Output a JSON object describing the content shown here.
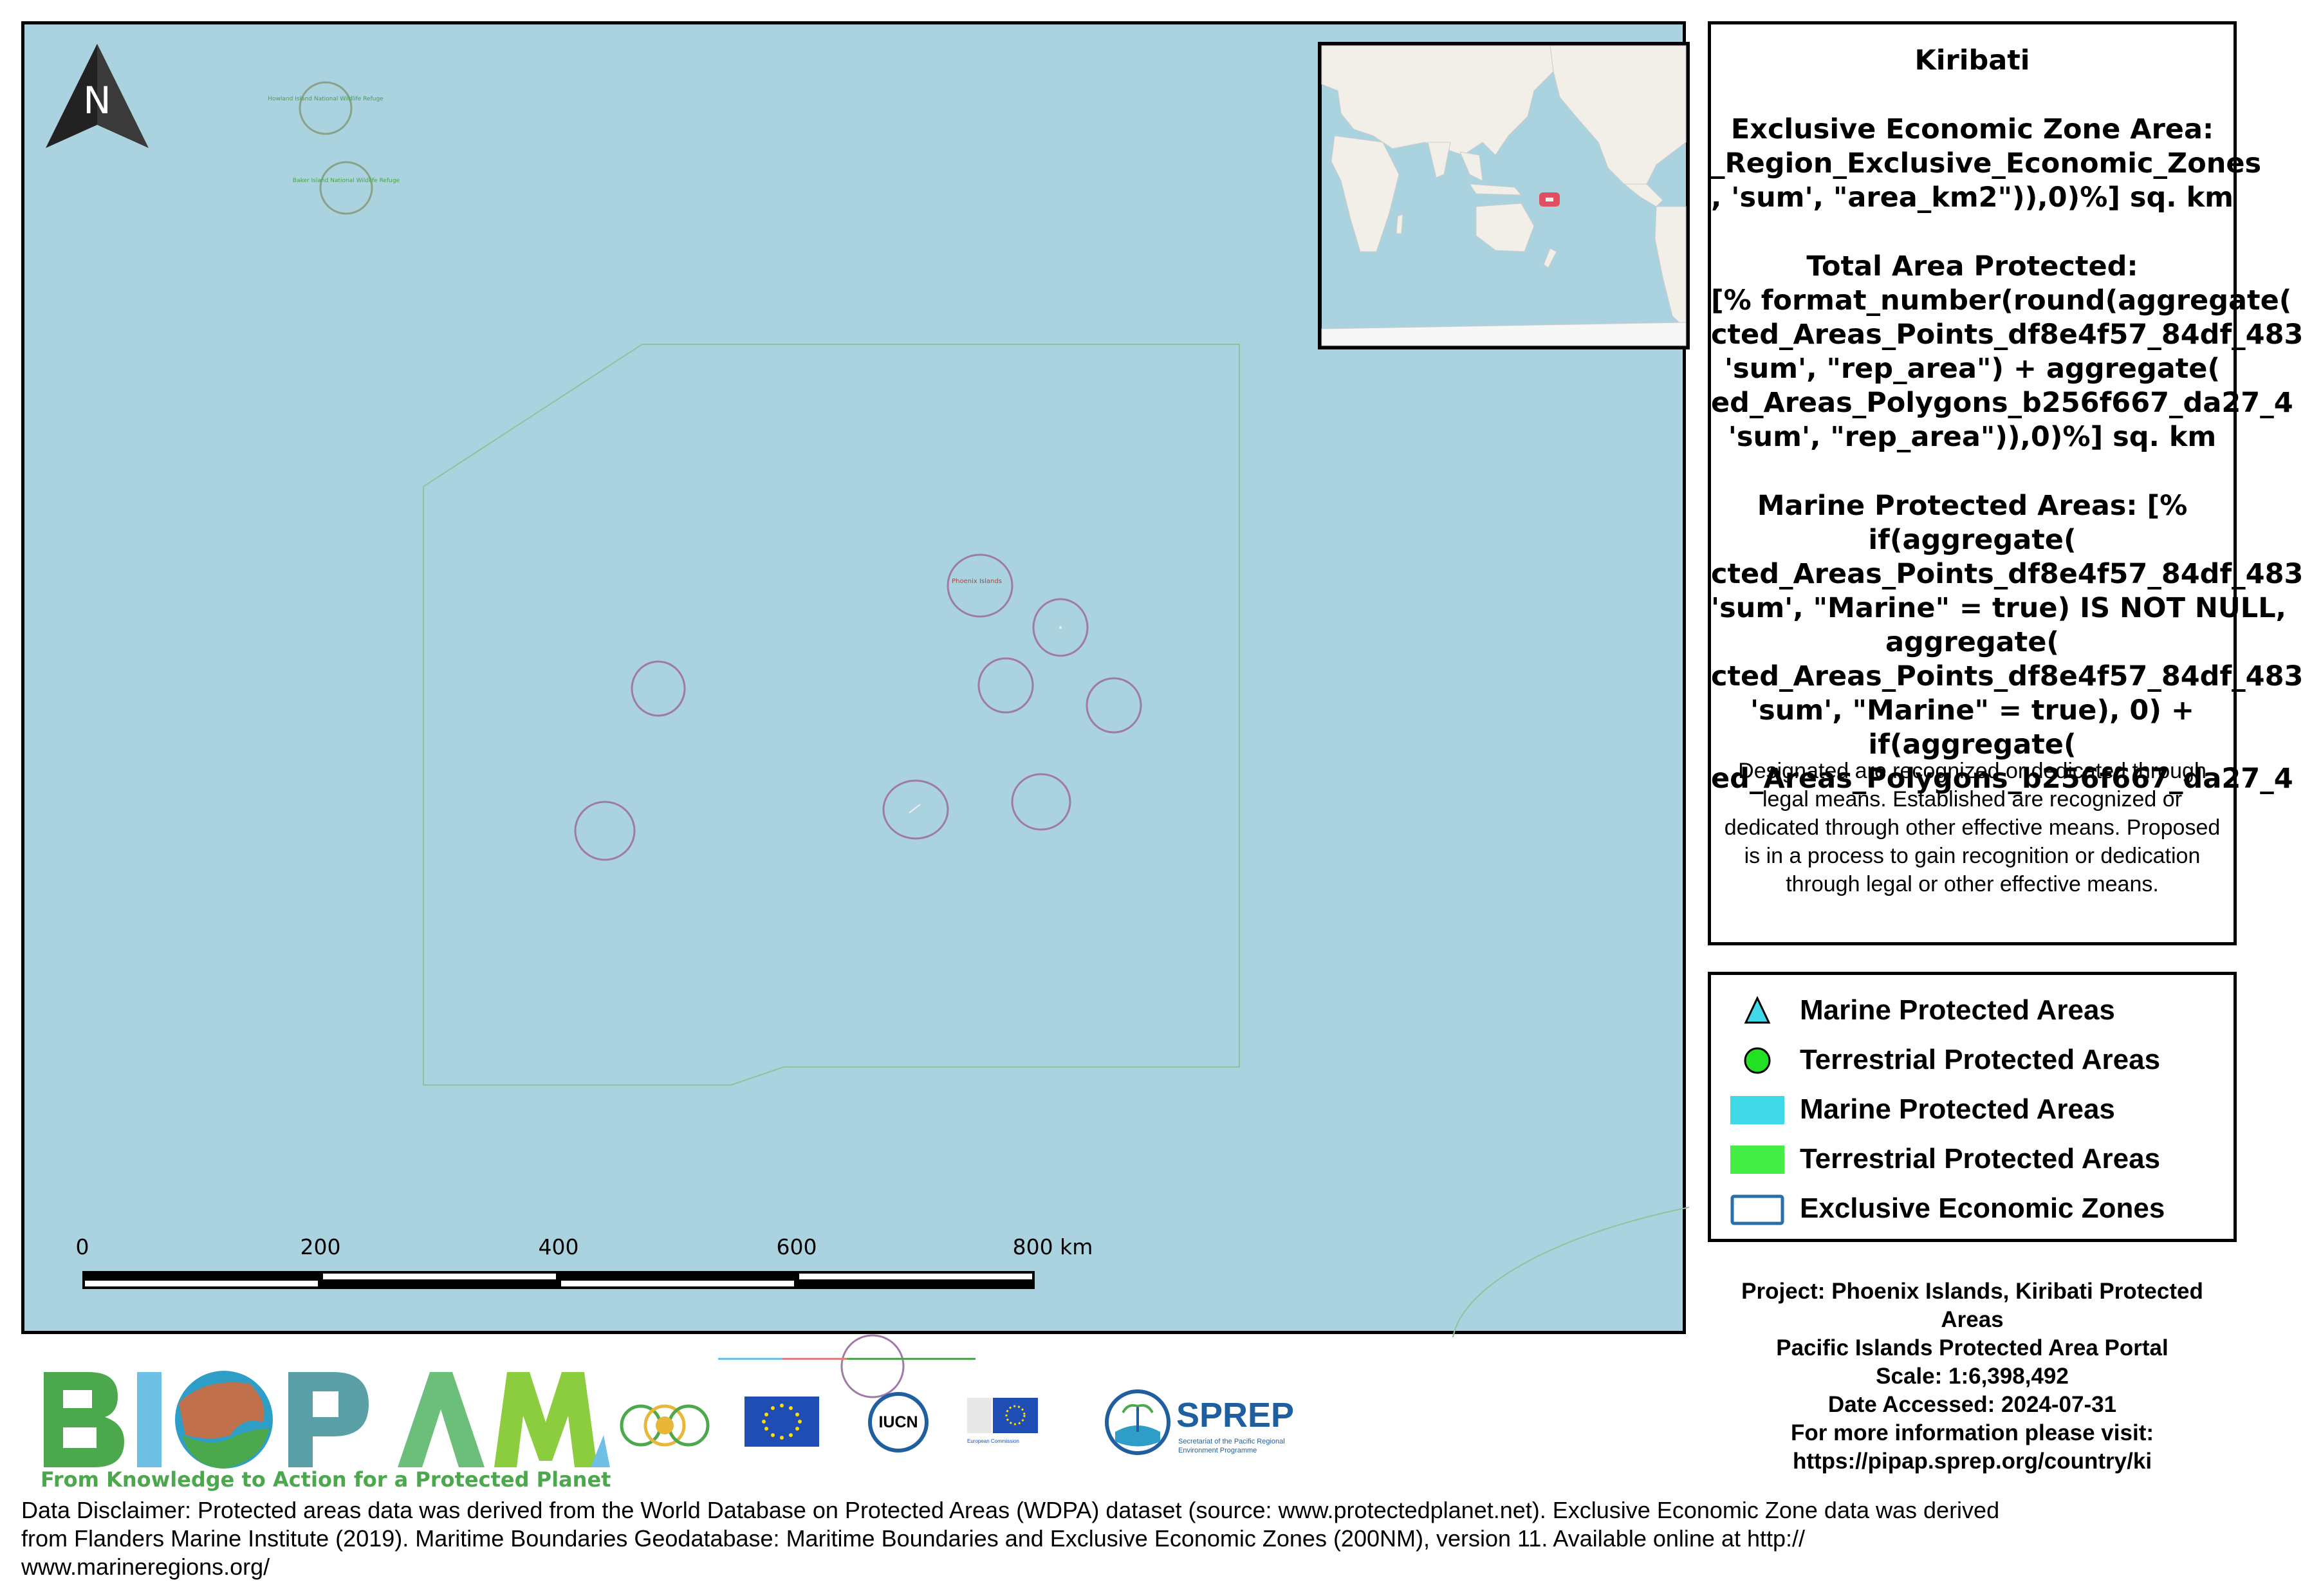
{
  "map": {
    "labels": {
      "howland": "Howland Island National Wildlife Refuge",
      "baker": "Baker Island National Wildlife Refuge",
      "phoenix": "Phoenix Islands"
    },
    "scalebar": {
      "ticks": [
        "0",
        "200",
        "400",
        "600",
        "800 km"
      ]
    },
    "north_label": "N"
  },
  "info": {
    "title": "Kiribati",
    "eez_heading": "Exclusive Economic Zone Area:",
    "eez_l1": "_Region_Exclusive_Economic_Zones",
    "eez_l2": ", 'sum', \"area_km2\")),0)%] sq. km",
    "total_heading": "Total Area Protected:",
    "total_l1": "[% format_number(round(aggregate(",
    "total_l2": "cted_Areas_Points_df8e4f57_84df_483",
    "total_l3": "'sum', \"rep_area\") + aggregate(",
    "total_l4": "ed_Areas_Polygons_b256f667_da27_4",
    "total_l5": "'sum', \"rep_area\")),0)%] sq. km",
    "mpa_l1": "Marine Protected Areas: [%",
    "mpa_l2": "if(aggregate(",
    "mpa_l3": "cted_Areas_Points_df8e4f57_84df_483",
    "mpa_l4": "'sum', \"Marine\" = true) IS NOT NULL,",
    "mpa_l5": "aggregate(",
    "mpa_l6": "cted_Areas_Points_df8e4f57_84df_483",
    "mpa_l7": "'sum', \"Marine\" = true), 0) +",
    "mpa_l8": "if(aggregate(",
    "mpa_l9": "ed_Areas_Polygons_b256f667_da27_4",
    "description": "Designated are recognized or dedicated through legal means. Established are recognized or dedicated through other effective means. Proposed is in a process to gain recognition or dedication through legal or other effective means."
  },
  "legend": {
    "items": [
      {
        "label": "Marine Protected Areas",
        "symbol": "triangle",
        "color": "#3fd9e8"
      },
      {
        "label": "Terrestrial Protected Areas",
        "symbol": "circle",
        "color": "#22e022"
      },
      {
        "label": "Marine Protected Areas",
        "symbol": "fill",
        "color": "#3fd9e8"
      },
      {
        "label": "Terrestrial Protected Areas",
        "symbol": "fill",
        "color": "#44ee44"
      },
      {
        "label": "Exclusive Economic Zones",
        "symbol": "outline",
        "color": "#2a6fa8"
      }
    ]
  },
  "meta": {
    "project_l1": "Project: Phoenix Islands, Kiribati Protected",
    "project_l2": "Areas",
    "portal": "Pacific Islands Protected Area Portal",
    "scale": "Scale: 1:6,398,492",
    "date": "Date Accessed: 2024-07-31",
    "more": "For more information please visit:",
    "url": "https://pipap.sprep.org/country/ki"
  },
  "logos": {
    "biopama": "BIOPAMA",
    "biopama_tagline": "From Knowledge to Action for a Protected Planet",
    "iucn": "IUCN",
    "ec": "European Commission",
    "sprep": "SPREP",
    "sprep_sub1": "Secretariat of the Pacific Regional",
    "sprep_sub2": "Environment Programme"
  },
  "disclaimer": {
    "l1": "Data Disclaimer:  Protected areas data was derived from the World Database on Protected Areas (WDPA) dataset (source: www.protectedplanet.net).  Exclusive Economic Zone data was derived",
    "l2": "from Flanders Marine Institute (2019). Maritime Boundaries Geodatabase: Maritime Boundaries and Exclusive Economic Zones  (200NM), version 11. Available online at http://",
    "l3": "www.marineregions.org/"
  },
  "colors": {
    "ocean": "#aad3df",
    "pa_outline": "#a07aa6",
    "eez_line": "#8fc39a",
    "land": "#f2efe9",
    "inset_highlight": "#e05060"
  }
}
